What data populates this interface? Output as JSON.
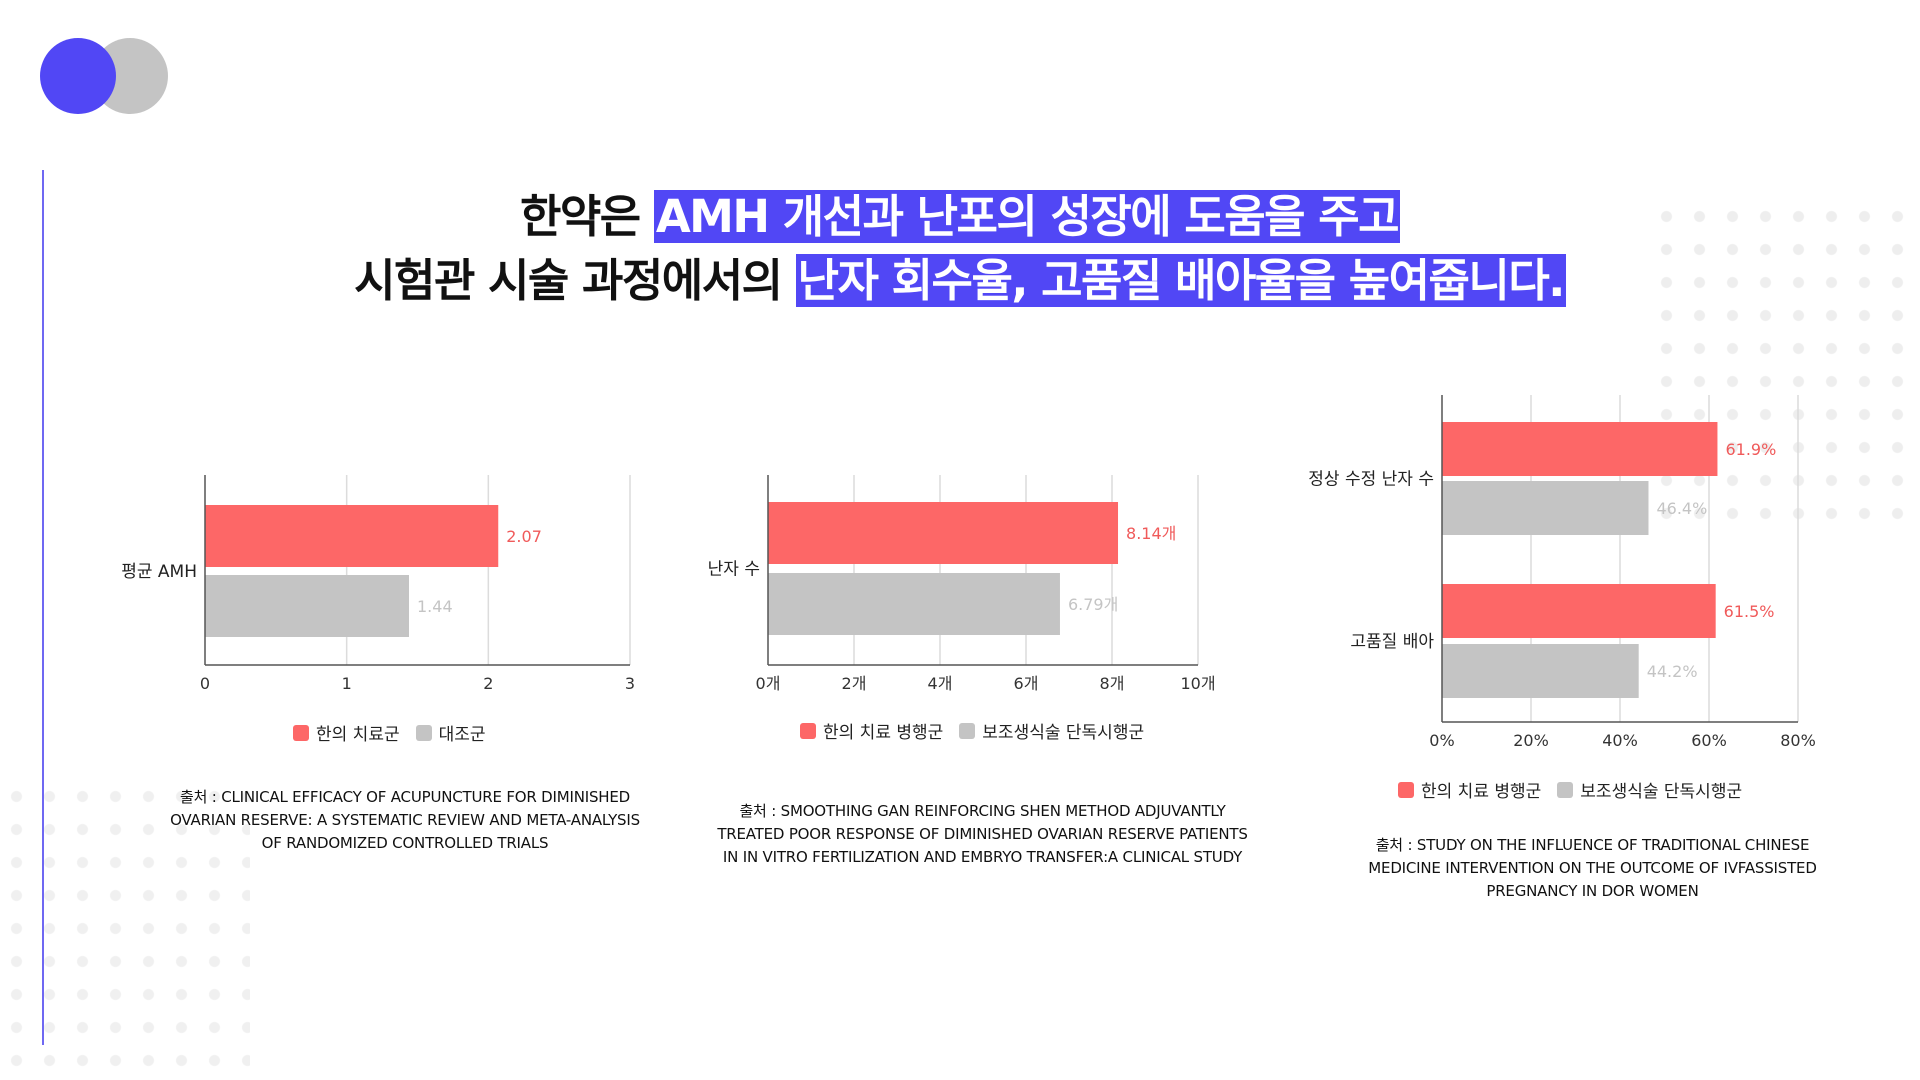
{
  "headline": {
    "line1_plain": "한약은 ",
    "line1_highlight": "AMH 개선과 난포의 성장에 도움을 주고",
    "line2_plain": "시험관 시술 과정에서의 ",
    "line2_highlight": "난자 회수율, 고품질 배아율을  높여줍니다."
  },
  "colors": {
    "accent": "#5147f5",
    "treatment": "#fd6767",
    "control": "#c4c4c4",
    "label_treatment": "#f05a5a",
    "label_control": "#c4c4c4"
  },
  "chart_data": [
    {
      "type": "bar",
      "orientation": "horizontal",
      "categories": [
        "평균 AMH"
      ],
      "series": [
        {
          "name": "한의 치료군",
          "values": [
            2.07
          ],
          "labels": [
            "2.07"
          ]
        },
        {
          "name": "대조군",
          "values": [
            1.44
          ],
          "labels": [
            "1.44"
          ]
        }
      ],
      "xlim": [
        0,
        3
      ],
      "xticks": [
        "0",
        "1",
        "2",
        "3"
      ],
      "grid": true,
      "legend_position": "bottom",
      "source": "출처 : Clinical Efficacy of Acupuncture for Diminished Ovarian Reserve: A Systematic Review and Meta-Analysis of Randomized Controlled Trials"
    },
    {
      "type": "bar",
      "orientation": "horizontal",
      "categories": [
        "난자 수"
      ],
      "series": [
        {
          "name": "한의 치료 병행군",
          "values": [
            8.14
          ],
          "labels": [
            "8.14개"
          ]
        },
        {
          "name": "보조생식술 단독시행군",
          "values": [
            6.79
          ],
          "labels": [
            "6.79개"
          ]
        }
      ],
      "xlim": [
        0,
        10
      ],
      "xticks": [
        "0개",
        "2개",
        "4개",
        "6개",
        "8개",
        "10개"
      ],
      "grid": true,
      "legend_position": "bottom",
      "source": "출처 : Smoothing Gan Reinforcing Shen Method Adjuvantly Treated Poor Response of Diminished Ovarian Reserve Patients in in Vitro Fertilization and Embryo Transfer:A Clinical Study"
    },
    {
      "type": "bar",
      "orientation": "horizontal",
      "categories": [
        "정상 수정 난자 수",
        "고품질 배아"
      ],
      "series": [
        {
          "name": "한의 치료 병행군",
          "values": [
            61.9,
            61.5
          ],
          "labels": [
            "61.9%",
            "61.5%"
          ]
        },
        {
          "name": "보조생식술 단독시행군",
          "values": [
            46.4,
            44.2
          ],
          "labels": [
            "46.4%",
            "44.2%"
          ]
        }
      ],
      "xlim": [
        0,
        80
      ],
      "xticks": [
        "0%",
        "20%",
        "40%",
        "60%",
        "80%"
      ],
      "grid": true,
      "legend_position": "bottom",
      "source": "출처 : Study on the Influence of Traditional Chinese Medicine Intervention on the Outcome of IVFassisted Pregnancy in DOR Women"
    }
  ]
}
